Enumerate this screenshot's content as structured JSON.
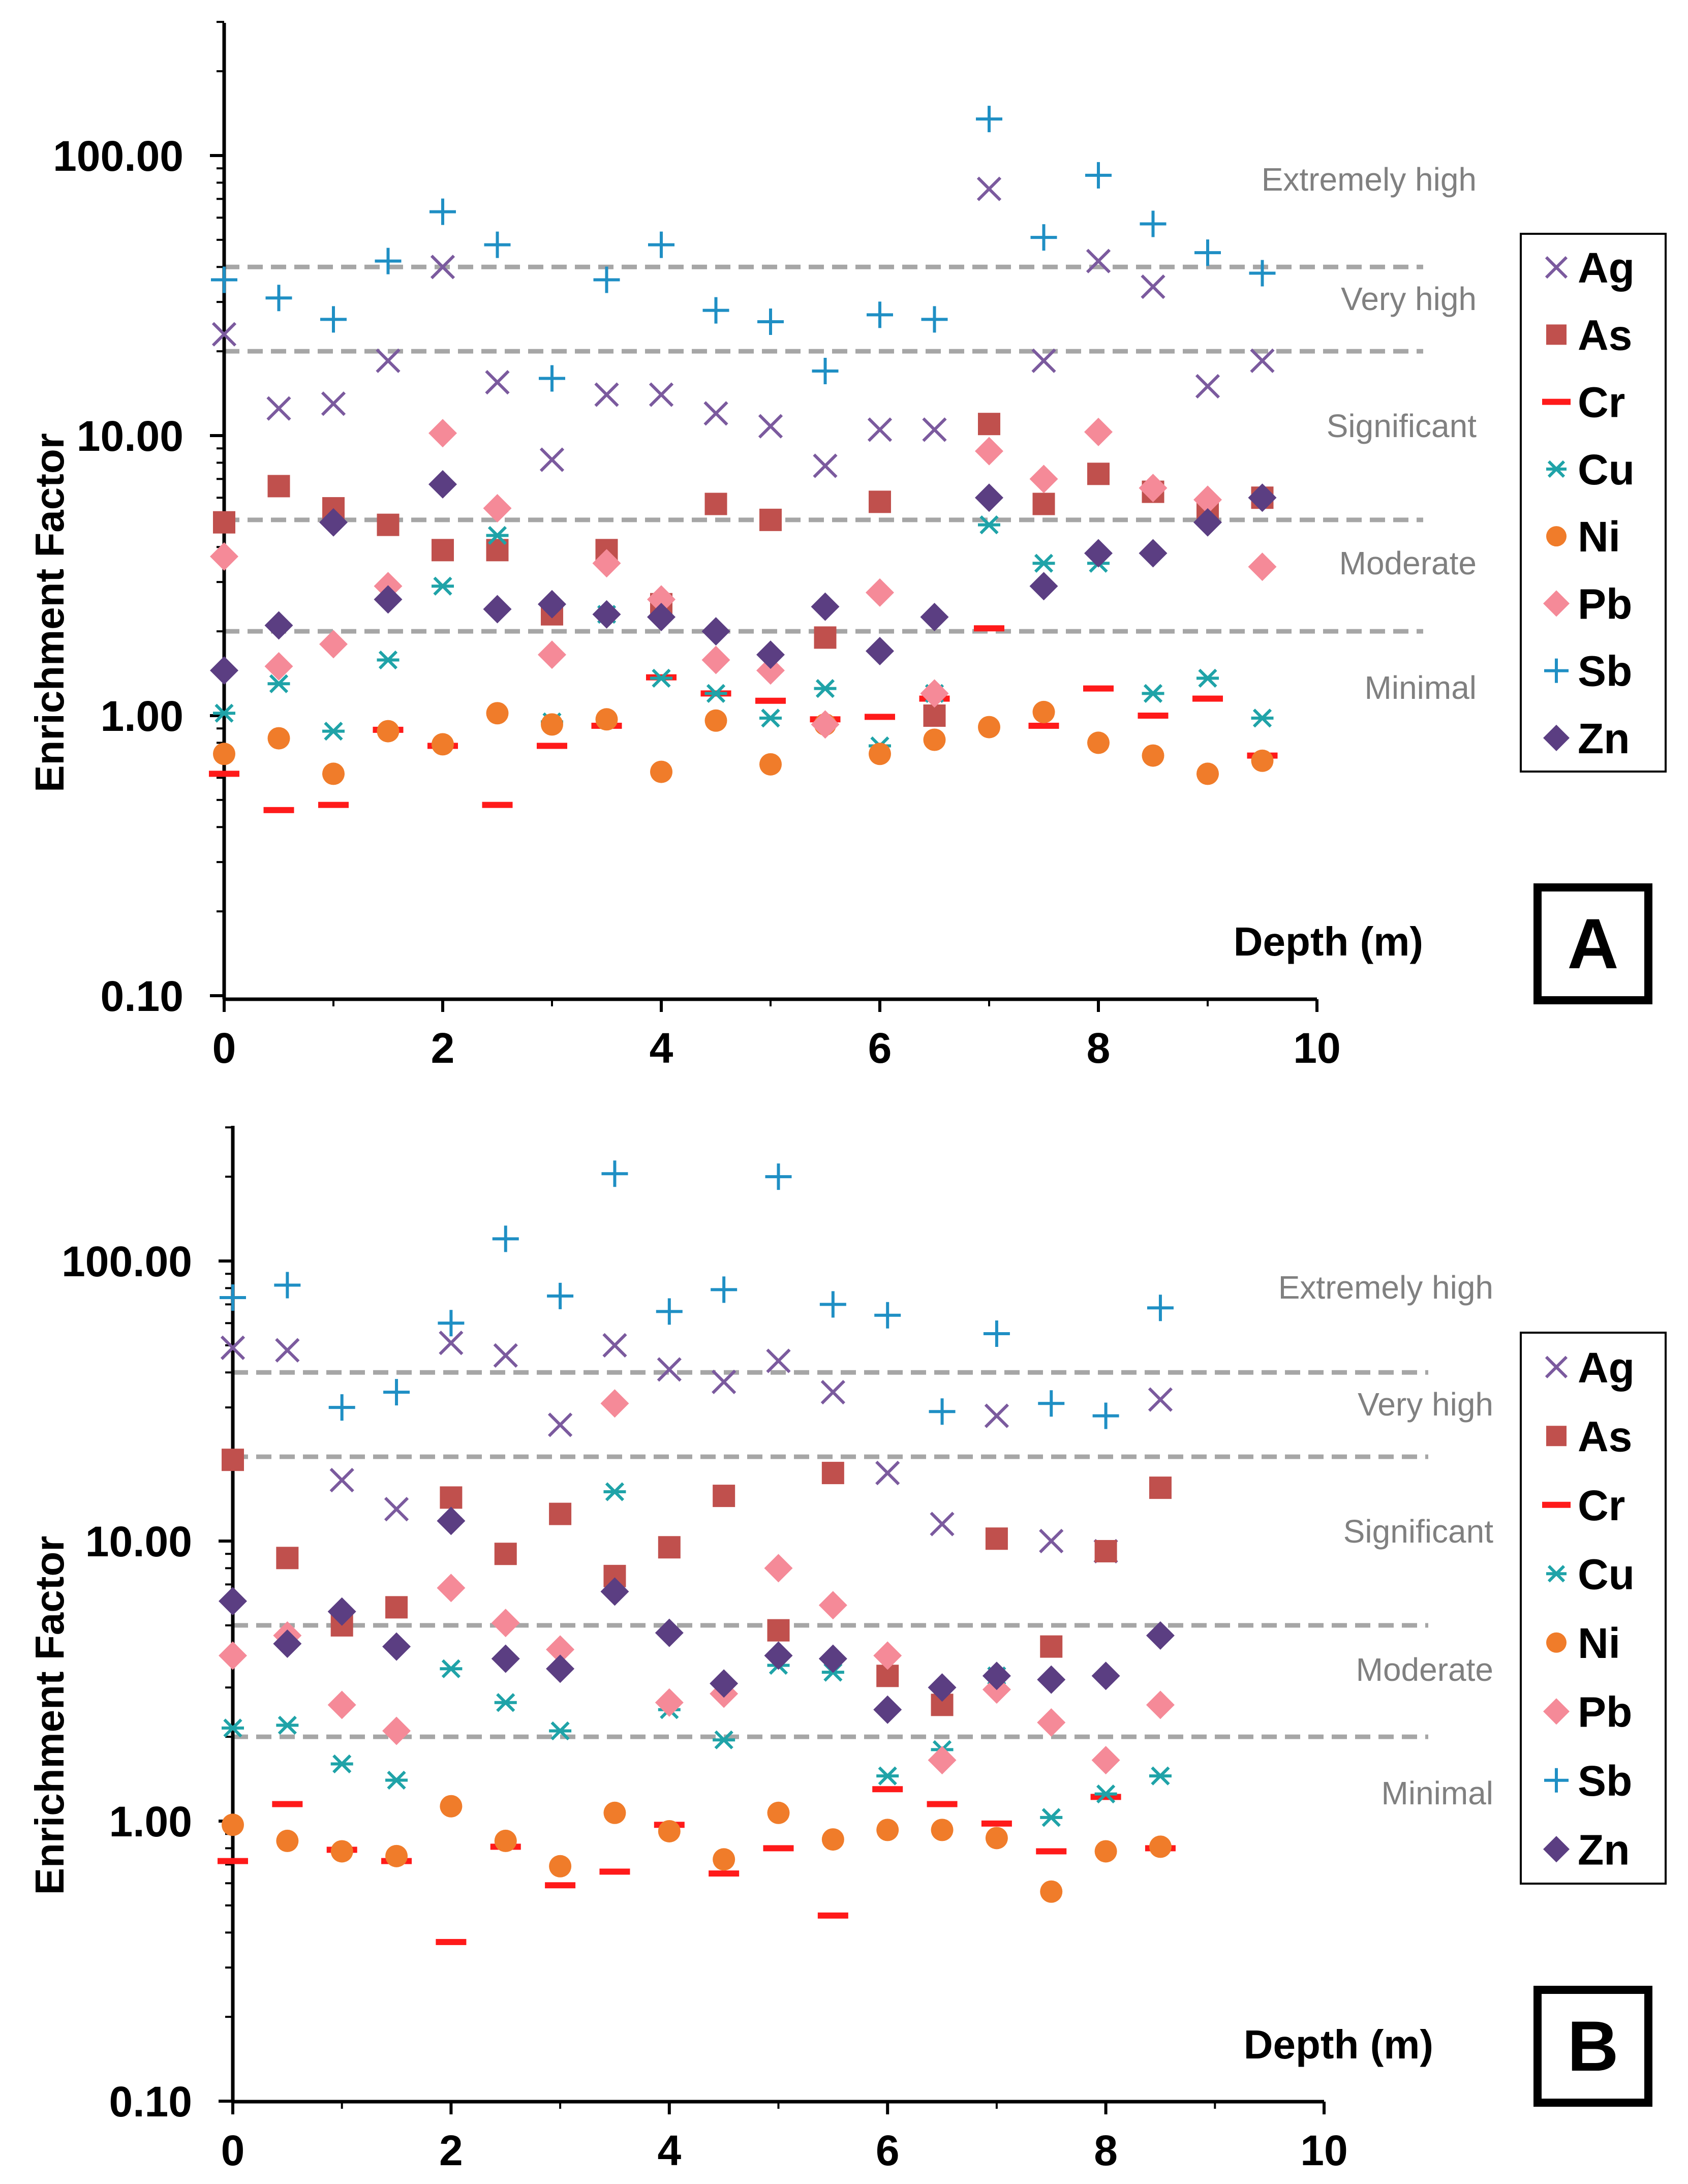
{
  "figure": {
    "title": ""
  },
  "colors": {
    "Ag": "#7b5a9e",
    "As": "#c0504d",
    "Cr": "#ff1a1a",
    "Cu": "#1fa3a8",
    "Ni": "#f07c2a",
    "Pb": "#f58a98",
    "Sb": "#1f8fc4",
    "Zn": "#5b3e82",
    "axis": "#000000",
    "threshold_line": "#a6a6a6",
    "zone_label": "#808080"
  },
  "chart_data": [
    {
      "type": "scatter",
      "panel_label": "A",
      "title": "",
      "xlabel": "Depth (m)",
      "ylabel": "Enrichment Factor",
      "xlim": [
        0,
        10
      ],
      "ylim": [
        0.1,
        300
      ],
      "y_scale": "log",
      "x_ticks": [
        "0",
        "2",
        "4",
        "6",
        "8",
        "10"
      ],
      "y_ticks": [
        "0.10",
        "1.00",
        "10.00",
        "100.00"
      ],
      "grid": false,
      "legend_position": "right",
      "thresholds": [
        2,
        5,
        20,
        40
      ],
      "zones": [
        "Minimal",
        "Moderate",
        "Significant",
        "Very high",
        "Extremely high"
      ],
      "series": [
        {
          "name": "Ag",
          "marker": "x",
          "x": [
            0,
            0.5,
            1,
            1.5,
            2,
            2.5,
            3,
            3.5,
            4,
            4.5,
            5,
            5.5,
            6,
            6.5,
            7,
            7.5,
            8,
            8.5,
            9,
            9.5
          ],
          "values": [
            23,
            12.5,
            13,
            18.5,
            40,
            15.5,
            8.2,
            14,
            14,
            12,
            10.8,
            7.8,
            10.5,
            10.5,
            76,
            18.5,
            42,
            34,
            15,
            18.5
          ]
        },
        {
          "name": "As",
          "marker": "square",
          "x": [
            0,
            0.5,
            1,
            1.5,
            2,
            2.5,
            3,
            3.5,
            4,
            4.5,
            5,
            5.5,
            6,
            6.5,
            7,
            7.5,
            8,
            8.5,
            9,
            9.5
          ],
          "values": [
            4.9,
            6.6,
            5.5,
            4.8,
            3.9,
            3.9,
            2.3,
            3.9,
            2.5,
            5.7,
            5.0,
            1.9,
            5.8,
            1.0,
            11,
            5.7,
            7.3,
            6.3,
            5.3,
            6.0
          ]
        },
        {
          "name": "Cr",
          "marker": "dash",
          "x": [
            0,
            0.5,
            1,
            1.5,
            2,
            2.5,
            3,
            3.5,
            4,
            4.5,
            5,
            5.5,
            6,
            6.5,
            7,
            7.5,
            8,
            8.5,
            9,
            9.5
          ],
          "values": [
            0.62,
            0.46,
            0.48,
            0.89,
            0.78,
            0.48,
            0.78,
            0.92,
            1.37,
            1.2,
            1.13,
            0.97,
            0.99,
            1.15,
            2.05,
            0.92,
            1.25,
            1.0,
            1.15,
            0.72
          ]
        },
        {
          "name": "Cu",
          "marker": "asterisk",
          "x": [
            0,
            0.5,
            1,
            1.5,
            2,
            2.5,
            3,
            3.5,
            4,
            4.5,
            5,
            5.5,
            6,
            6.5,
            7,
            7.5,
            8,
            8.5,
            9,
            9.5
          ],
          "values": [
            1.02,
            1.3,
            0.88,
            1.58,
            2.9,
            4.4,
            0.95,
            2.3,
            1.36,
            1.2,
            0.98,
            1.25,
            0.78,
            1.2,
            4.8,
            3.5,
            3.5,
            1.2,
            1.36,
            0.98
          ]
        },
        {
          "name": "Ni",
          "marker": "circle",
          "x": [
            0,
            0.5,
            1,
            1.5,
            2,
            2.5,
            3,
            3.5,
            4,
            4.5,
            5,
            5.5,
            6,
            6.5,
            7,
            7.5,
            8,
            8.5,
            9,
            9.5
          ],
          "values": [
            0.73,
            0.83,
            0.62,
            0.88,
            0.79,
            1.02,
            0.93,
            0.97,
            0.63,
            0.96,
            0.67,
            0.93,
            0.73,
            0.82,
            0.91,
            1.03,
            0.8,
            0.72,
            0.62,
            0.69
          ]
        },
        {
          "name": "Pb",
          "marker": "diamond",
          "x": [
            0,
            0.5,
            1,
            1.5,
            2,
            2.5,
            3,
            3.5,
            4,
            4.5,
            5,
            5.5,
            6,
            6.5,
            7,
            7.5,
            8,
            8.5,
            9,
            9.5
          ],
          "values": [
            3.7,
            1.5,
            1.8,
            2.9,
            10.2,
            5.5,
            1.65,
            3.5,
            2.6,
            1.58,
            1.45,
            0.93,
            2.75,
            1.2,
            8.8,
            7.0,
            10.3,
            6.5,
            5.9,
            3.4
          ]
        },
        {
          "name": "Sb",
          "marker": "plus",
          "x": [
            0,
            0.5,
            1,
            1.5,
            2,
            2.5,
            3,
            3.5,
            4,
            4.5,
            5,
            5.5,
            6,
            6.5,
            7,
            7.5,
            8,
            8.5,
            9,
            9.5
          ],
          "values": [
            36,
            31,
            26,
            42,
            63,
            48,
            16,
            36,
            48,
            28,
            25.5,
            17,
            27,
            26,
            135,
            51,
            85,
            57,
            45,
            38
          ]
        },
        {
          "name": "Zn",
          "marker": "diamond-dark",
          "x": [
            0,
            0.5,
            1,
            1.5,
            2,
            2.5,
            3,
            3.5,
            4,
            4.5,
            5,
            5.5,
            6,
            6.5,
            7,
            7.5,
            8,
            8.5,
            9,
            9.5
          ],
          "values": [
            1.45,
            2.1,
            4.9,
            2.6,
            6.7,
            2.4,
            2.5,
            2.3,
            2.25,
            2.0,
            1.65,
            2.45,
            1.7,
            2.25,
            6.0,
            2.9,
            3.8,
            3.8,
            4.9,
            6.0
          ]
        }
      ]
    },
    {
      "type": "scatter",
      "panel_label": "B",
      "title": "",
      "xlabel": "Depth (m)",
      "ylabel": "Enrichment Factor",
      "xlim": [
        0,
        10
      ],
      "ylim": [
        0.1,
        300
      ],
      "y_scale": "log",
      "x_ticks": [
        "0",
        "2",
        "4",
        "6",
        "8",
        "10"
      ],
      "y_ticks": [
        "0.10",
        "1.00",
        "10.00",
        "100.00"
      ],
      "grid": false,
      "legend_position": "right",
      "thresholds": [
        2,
        5,
        20,
        40
      ],
      "zones": [
        "Minimal",
        "Moderate",
        "Significant",
        "Very high",
        "Extremely high"
      ],
      "series": [
        {
          "name": "Ag",
          "marker": "x",
          "x": [
            0,
            0.5,
            1,
            1.5,
            2,
            2.5,
            3,
            3.5,
            4,
            4.5,
            5,
            5.5,
            6,
            6.5,
            7,
            7.5,
            8,
            8.5
          ],
          "values": [
            49,
            48,
            16.5,
            13,
            51,
            46,
            26,
            50,
            41,
            37,
            44,
            34,
            17.5,
            11.5,
            28,
            10,
            9.2,
            32
          ]
        },
        {
          "name": "As",
          "marker": "square",
          "x": [
            0,
            0.5,
            1,
            1.5,
            2,
            2.5,
            3,
            3.5,
            4,
            4.5,
            5,
            5.5,
            6,
            6.5,
            7,
            7.5,
            8,
            8.5
          ],
          "values": [
            19.5,
            8.7,
            5.0,
            5.8,
            14.3,
            9.0,
            12.5,
            7.5,
            9.5,
            14.5,
            4.8,
            17.5,
            3.3,
            2.6,
            10.2,
            4.2,
            9.2,
            15.5
          ]
        },
        {
          "name": "Cr",
          "marker": "dash",
          "x": [
            0,
            0.5,
            1,
            1.5,
            2,
            2.5,
            3,
            3.5,
            4,
            4.5,
            5,
            5.5,
            6,
            6.5,
            7,
            7.5,
            8,
            8.5
          ],
          "values": [
            0.72,
            1.15,
            0.79,
            0.72,
            0.37,
            0.81,
            0.59,
            0.66,
            0.97,
            0.65,
            0.8,
            0.46,
            1.3,
            1.15,
            0.98,
            0.78,
            1.22,
            0.8
          ]
        },
        {
          "name": "Cu",
          "marker": "asterisk",
          "x": [
            0,
            0.5,
            1,
            1.5,
            2,
            2.5,
            3,
            3.5,
            4,
            4.5,
            5,
            5.5,
            6,
            6.5,
            7,
            7.5,
            8,
            8.5
          ],
          "values": [
            2.15,
            2.2,
            1.6,
            1.4,
            3.5,
            2.65,
            2.1,
            15,
            2.5,
            1.95,
            3.6,
            3.4,
            1.45,
            1.8,
            3.3,
            1.03,
            1.25,
            1.45
          ]
        },
        {
          "name": "Ni",
          "marker": "circle",
          "x": [
            0,
            0.5,
            1,
            1.5,
            2,
            2.5,
            3,
            3.5,
            4,
            4.5,
            5,
            5.5,
            6,
            6.5,
            7,
            7.5,
            8,
            8.5
          ],
          "values": [
            0.97,
            0.85,
            0.78,
            0.75,
            1.13,
            0.85,
            0.69,
            1.07,
            0.92,
            0.73,
            1.07,
            0.86,
            0.93,
            0.93,
            0.87,
            0.56,
            0.78,
            0.81
          ]
        },
        {
          "name": "Pb",
          "marker": "diamond",
          "x": [
            0,
            0.5,
            1,
            1.5,
            2,
            2.5,
            3,
            3.5,
            4,
            4.5,
            5,
            5.5,
            6,
            6.5,
            7,
            7.5,
            8,
            8.5
          ],
          "values": [
            3.9,
            4.6,
            2.6,
            2.1,
            6.8,
            5.1,
            4.1,
            31,
            2.65,
            2.85,
            8.0,
            5.9,
            3.9,
            1.65,
            2.95,
            2.25,
            1.65,
            2.6
          ]
        },
        {
          "name": "Sb",
          "marker": "plus",
          "x": [
            0,
            0.5,
            1,
            1.5,
            2,
            2.5,
            3,
            3.5,
            4,
            4.5,
            5,
            5.5,
            6,
            6.5,
            7,
            7.5,
            8,
            8.5
          ],
          "values": [
            74,
            82,
            30,
            34,
            60,
            120,
            75,
            205,
            66,
            79,
            200,
            70,
            64,
            29,
            55,
            31,
            28,
            68
          ]
        },
        {
          "name": "Zn",
          "marker": "diamond-dark",
          "x": [
            0,
            0.5,
            1,
            1.5,
            2,
            2.5,
            3,
            3.5,
            4,
            4.5,
            5,
            5.5,
            6,
            6.5,
            7,
            7.5,
            8,
            8.5
          ],
          "values": [
            6.1,
            4.3,
            5.6,
            4.2,
            11.8,
            3.8,
            3.5,
            6.6,
            4.7,
            3.1,
            3.9,
            3.8,
            2.5,
            3.0,
            3.3,
            3.2,
            3.3,
            4.6
          ]
        }
      ]
    }
  ]
}
